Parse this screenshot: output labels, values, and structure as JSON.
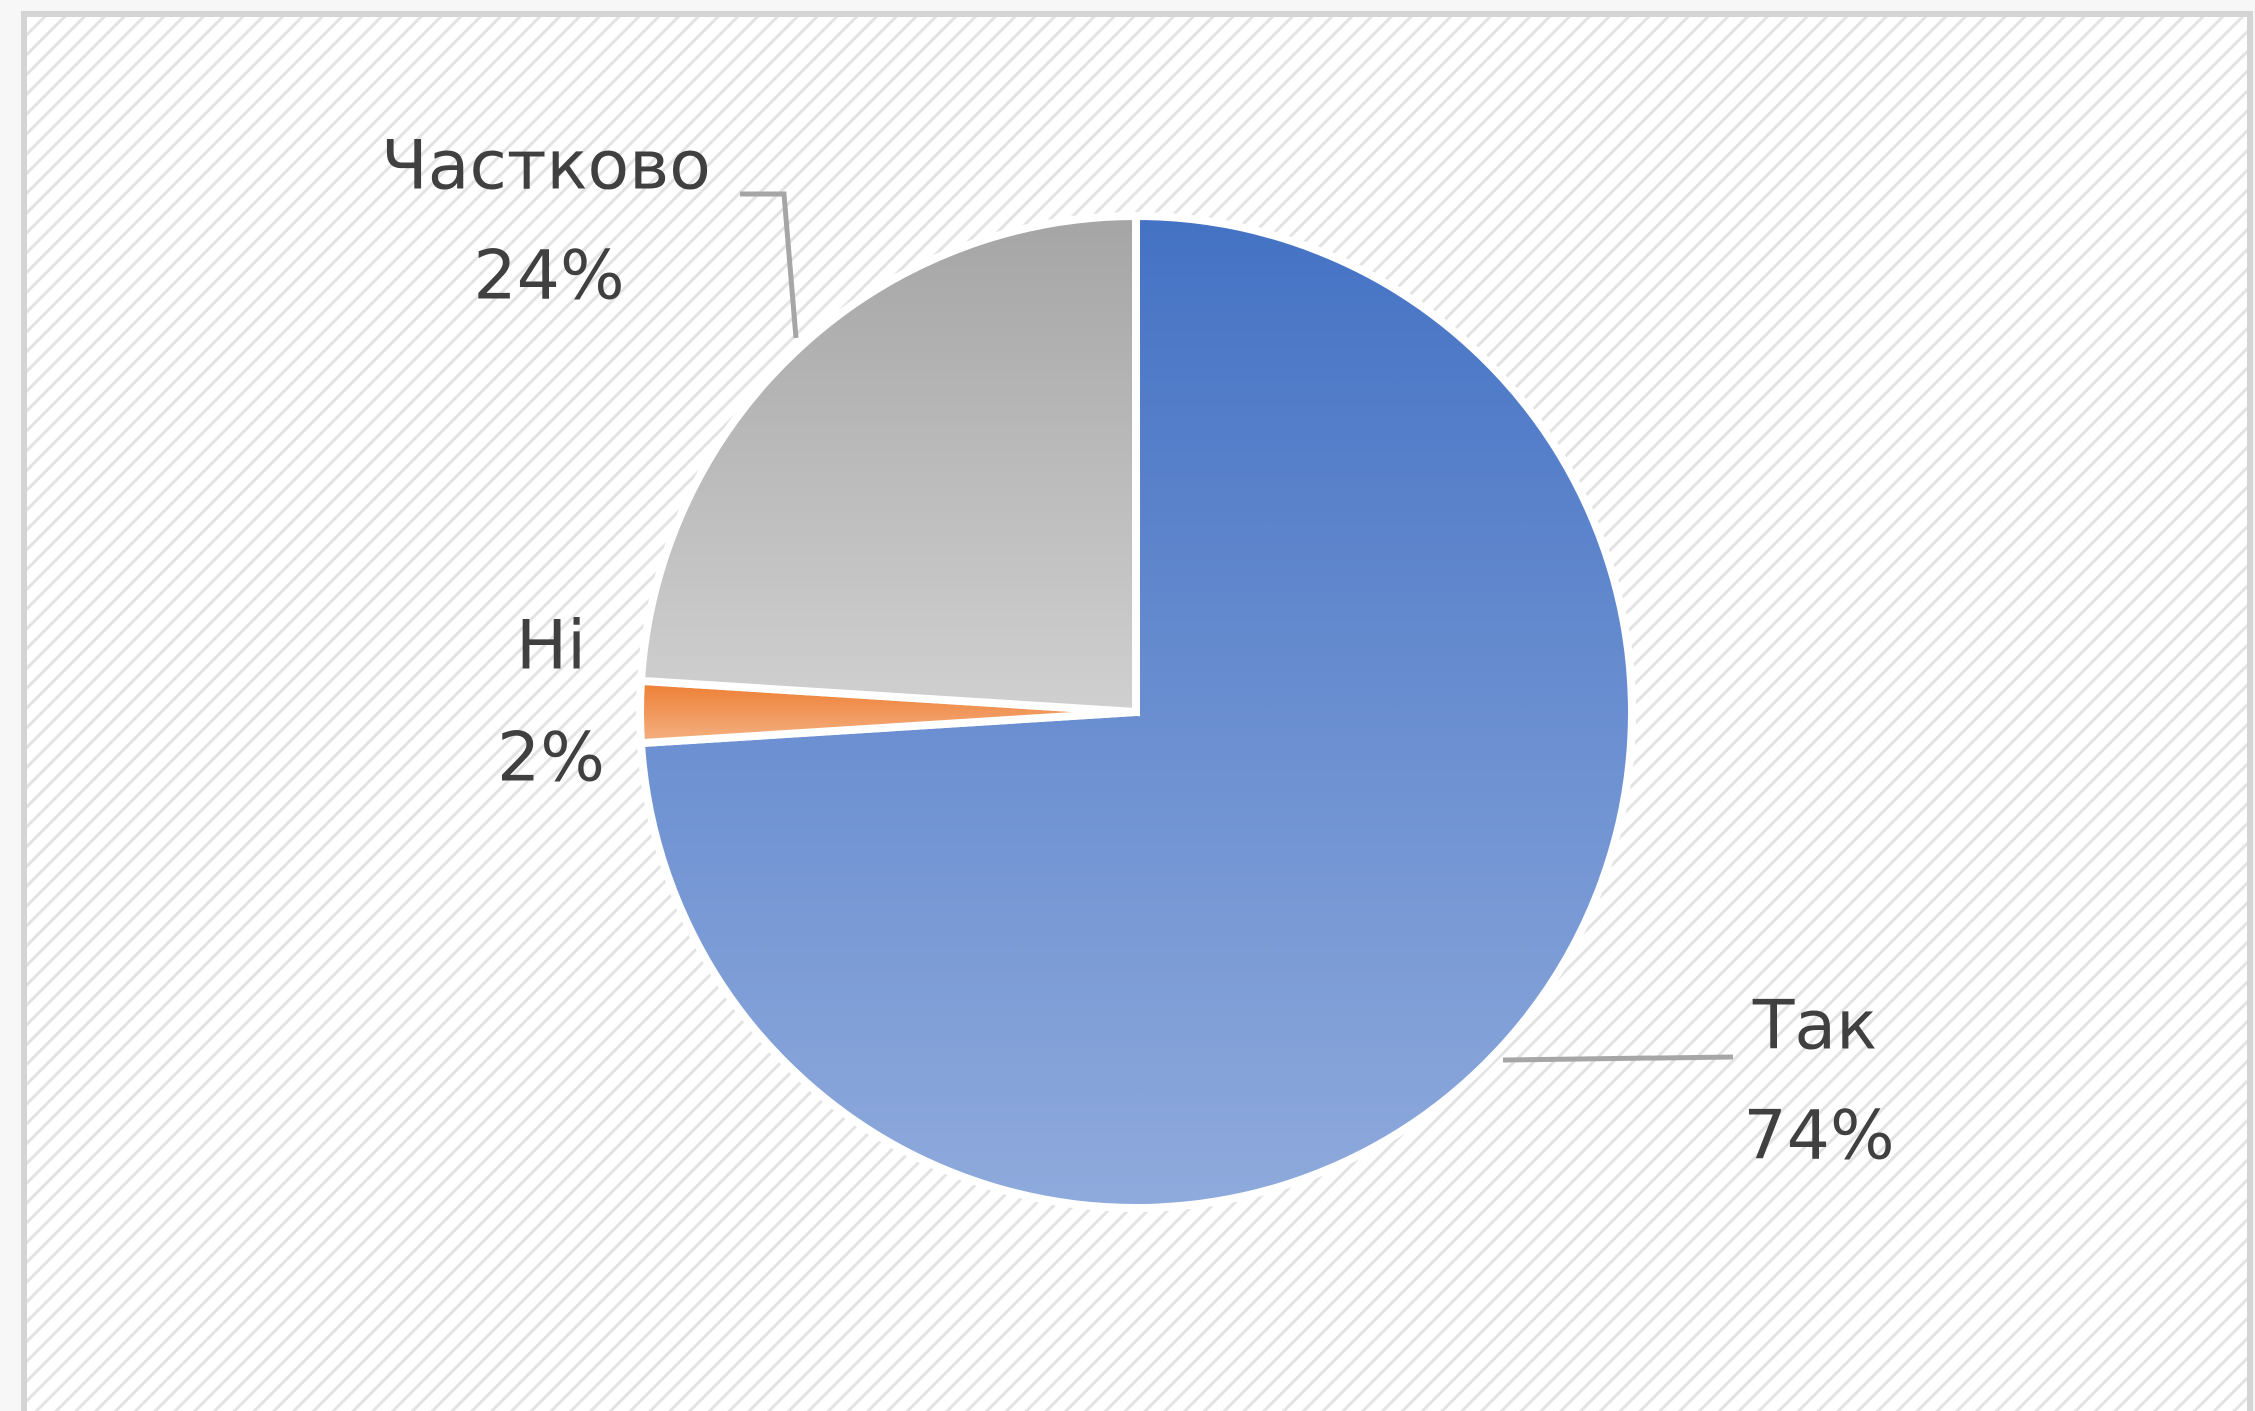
{
  "chart_data": {
    "type": "pie",
    "categories": [
      "Так",
      "Ні",
      "Частково"
    ],
    "values": [
      74,
      2,
      24
    ],
    "value_labels": [
      "74%",
      "2%",
      "24%"
    ],
    "colors": [
      [
        "#4472c4",
        "#8faadc"
      ],
      [
        "#ed7d31",
        "#f4b183"
      ],
      [
        "#a5a5a5",
        "#d0d0d0"
      ]
    ]
  }
}
